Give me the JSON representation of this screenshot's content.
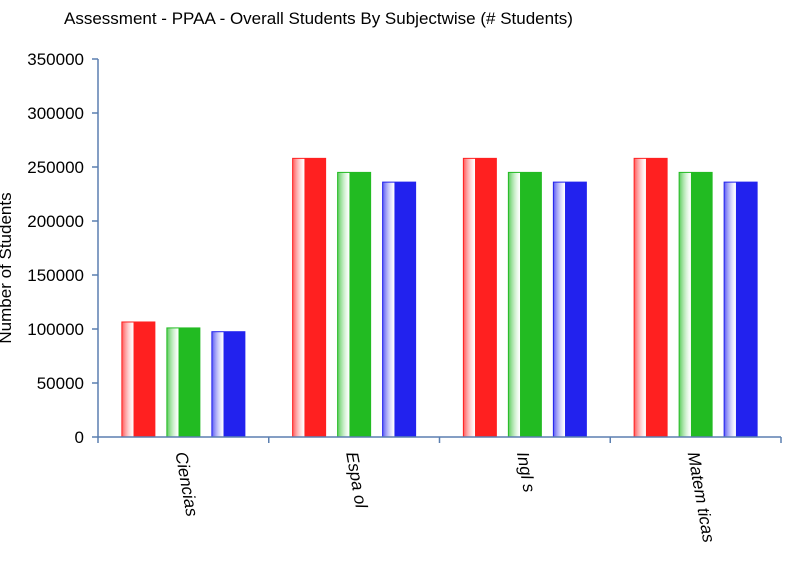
{
  "chart_data": {
    "type": "bar",
    "title": "Assessment - PPAA - Overall Students By Subjectwise (# Students)",
    "xlabel": "",
    "ylabel": "Number of Students",
    "ylim": [
      0,
      350000
    ],
    "yticks": [
      0,
      50000,
      100000,
      150000,
      200000,
      250000,
      300000,
      350000
    ],
    "ytick_labels": [
      "0",
      "50000",
      "100000",
      "150000",
      "200000",
      "250000",
      "300000",
      "350000"
    ],
    "categories": [
      "Ciencias",
      "Espa    ol",
      "Ingl   s",
      "Matem    ticas"
    ],
    "series": [
      {
        "color": "#ff2020",
        "values": [
          106500,
          258000,
          258000,
          258000
        ]
      },
      {
        "color": "#22bb22",
        "values": [
          101000,
          245000,
          245000,
          245000
        ]
      },
      {
        "color": "#2222ee",
        "values": [
          97500,
          236000,
          236000,
          236000
        ]
      }
    ],
    "grid": false,
    "legend": "none",
    "axis_color": "#5b7fb0"
  }
}
